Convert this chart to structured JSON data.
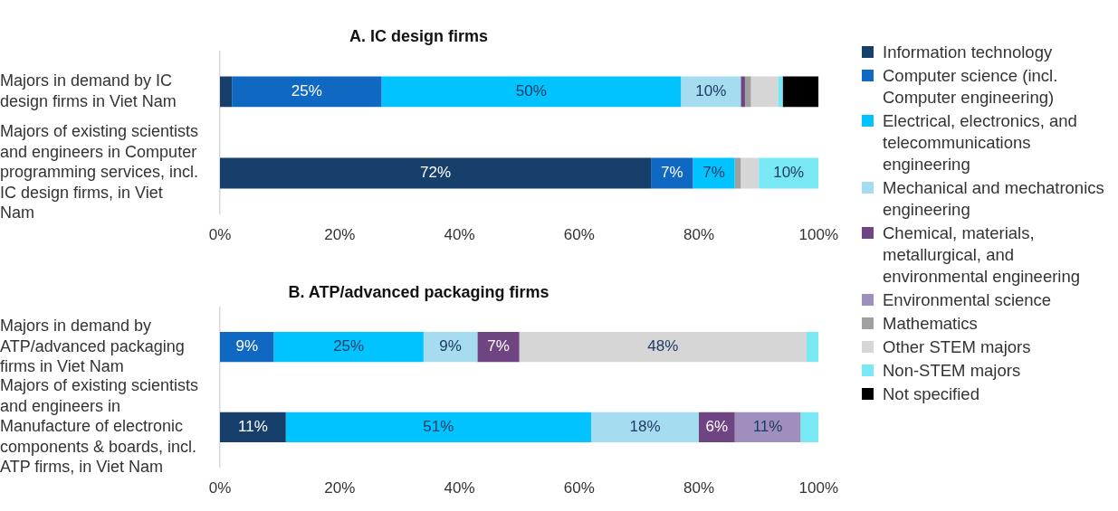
{
  "chart_data": [
    {
      "type": "bar",
      "orientation": "horizontal",
      "stacked": true,
      "title": "A. IC design firms",
      "categories": [
        "Majors in demand by IC design firms in Viet Nam",
        "Majors of existing scientists and engineers in Computer programming services, incl. IC design firms, in Viet Nam"
      ],
      "series": [
        {
          "name": "Information technology",
          "color": "#173f6b",
          "values": [
            2,
            72
          ],
          "value_labels": [
            null,
            "72%"
          ]
        },
        {
          "name": "Computer science (incl. Computer engineering)",
          "color": "#0f69c3",
          "values": [
            25,
            7
          ],
          "value_labels": [
            "25%",
            "7%"
          ]
        },
        {
          "name": "Electrical, electronics, and telecommunications engineering",
          "color": "#00c3ff",
          "values": [
            50,
            7
          ],
          "value_labels": [
            "50%",
            "7%"
          ]
        },
        {
          "name": "Mechanical and mechatronics engineering",
          "color": "#a5dcf0",
          "values": [
            10,
            0
          ],
          "value_labels": [
            "10%",
            null
          ]
        },
        {
          "name": "Chemical, materials, metallurgical, and environmental engineering",
          "color": "#6e4482",
          "values": [
            0.7,
            0
          ],
          "value_labels": [
            null,
            null
          ]
        },
        {
          "name": "Mathematics",
          "color": "#a0a0a0",
          "values": [
            1,
            1
          ],
          "value_labels": [
            null,
            null
          ]
        },
        {
          "name": "Other STEM majors",
          "color": "#d6d6d6",
          "values": [
            4.5,
            3
          ],
          "value_labels": [
            null,
            null
          ]
        },
        {
          "name": "Non-STEM majors",
          "color": "#78e8f5",
          "values": [
            0.8,
            10
          ],
          "value_labels": [
            null,
            "10%"
          ]
        },
        {
          "name": "Not specified",
          "color": "#000000",
          "values": [
            6,
            0
          ],
          "value_labels": [
            null,
            null
          ]
        }
      ],
      "xlim": [
        0,
        100
      ],
      "xticks": [
        {
          "value": 0,
          "label": "0%"
        },
        {
          "value": 20,
          "label": "20%"
        },
        {
          "value": 40,
          "label": "40%"
        },
        {
          "value": 60,
          "label": "60%"
        },
        {
          "value": 80,
          "label": "80%"
        },
        {
          "value": 100,
          "label": "100%"
        }
      ],
      "legend": "right",
      "grid": false
    },
    {
      "type": "bar",
      "orientation": "horizontal",
      "stacked": true,
      "title": "B. ATP/advanced packaging firms",
      "categories": [
        "Majors in demand by ATP/advanced packaging firms in Viet Nam",
        "Majors of existing scientists and engineers in Manufacture of electronic components & boards, incl. ATP firms, in Viet Nam"
      ],
      "series": [
        {
          "name": "Information technology",
          "color": "#173f6b",
          "values": [
            0,
            11
          ],
          "value_labels": [
            null,
            "11%"
          ]
        },
        {
          "name": "Computer science (incl. Computer engineering)",
          "color": "#0f69c3",
          "values": [
            9,
            0
          ],
          "value_labels": [
            "9%",
            null
          ]
        },
        {
          "name": "Electrical, electronics, and telecommunications engineering",
          "color": "#00c3ff",
          "values": [
            25,
            51
          ],
          "value_labels": [
            "25%",
            "51%"
          ]
        },
        {
          "name": "Mechanical and mechatronics engineering",
          "color": "#a5dcf0",
          "values": [
            9,
            18
          ],
          "value_labels": [
            "9%",
            "18%"
          ]
        },
        {
          "name": "Chemical, materials, metallurgical, and environmental engineering",
          "color": "#6e4482",
          "values": [
            7,
            6
          ],
          "value_labels": [
            "7%",
            "6%"
          ]
        },
        {
          "name": "Environmental science",
          "color": "#9f8fbe",
          "values": [
            0,
            11
          ],
          "value_labels": [
            null,
            "11%"
          ]
        },
        {
          "name": "Other STEM majors",
          "color": "#d6d6d6",
          "values": [
            48,
            0
          ],
          "value_labels": [
            "48%",
            null
          ]
        },
        {
          "name": "Non-STEM majors",
          "color": "#78e8f5",
          "values": [
            2,
            3
          ],
          "value_labels": [
            null,
            null
          ]
        }
      ],
      "xlim": [
        0,
        100
      ],
      "xticks": [
        {
          "value": 0,
          "label": "0%"
        },
        {
          "value": 20,
          "label": "20%"
        },
        {
          "value": 40,
          "label": "40%"
        },
        {
          "value": 60,
          "label": "60%"
        },
        {
          "value": 80,
          "label": "80%"
        },
        {
          "value": 100,
          "label": "100%"
        }
      ],
      "legend": "right",
      "grid": false
    }
  ]
}
